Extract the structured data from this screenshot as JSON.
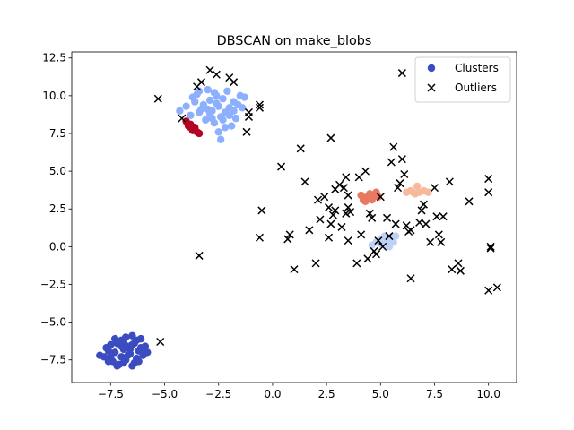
{
  "chart_data": {
    "type": "scatter",
    "title": "DBSCAN on make_blobs",
    "xlabel": "",
    "ylabel": "",
    "xlim": [
      -9.3,
      11.3
    ],
    "ylim": [
      -9.0,
      12.9
    ],
    "x_ticks": [
      -7.5,
      -5.0,
      -2.5,
      0.0,
      2.5,
      5.0,
      7.5,
      10.0
    ],
    "x_tick_labels": [
      "−7.5",
      "−5.0",
      "−2.5",
      "0.0",
      "2.5",
      "5.0",
      "7.5",
      "10.0"
    ],
    "y_ticks": [
      -7.5,
      -5.0,
      -2.5,
      0.0,
      2.5,
      5.0,
      7.5,
      10.0,
      12.5
    ],
    "y_tick_labels": [
      "−7.5",
      "−5.0",
      "−2.5",
      "0.0",
      "2.5",
      "5.0",
      "7.5",
      "10.0",
      "12.5"
    ],
    "grid": false,
    "legend": {
      "position": "top-right",
      "entries": [
        {
          "label": "Clusters",
          "marker": "circle",
          "color": "#3b4cc0"
        },
        {
          "label": "Outliers",
          "marker": "x",
          "color": "#000000"
        }
      ]
    },
    "series": [
      {
        "role": "cluster",
        "color": "#3b4cc0",
        "points": [
          [
            -8.0,
            -7.2
          ],
          [
            -7.8,
            -7.3
          ],
          [
            -7.6,
            -6.9
          ],
          [
            -7.5,
            -6.5
          ],
          [
            -7.4,
            -7.6
          ],
          [
            -7.3,
            -7.0
          ],
          [
            -7.2,
            -6.4
          ],
          [
            -7.1,
            -7.8
          ],
          [
            -7.0,
            -6.2
          ],
          [
            -7.0,
            -7.3
          ],
          [
            -6.9,
            -6.8
          ],
          [
            -6.8,
            -7.5
          ],
          [
            -6.8,
            -6.0
          ],
          [
            -6.7,
            -6.6
          ],
          [
            -6.6,
            -7.1
          ],
          [
            -6.5,
            -5.9
          ],
          [
            -6.5,
            -7.9
          ],
          [
            -6.4,
            -6.4
          ],
          [
            -6.3,
            -7.4
          ],
          [
            -6.2,
            -6.9
          ],
          [
            -6.1,
            -6.1
          ],
          [
            -6.0,
            -7.2
          ],
          [
            -5.9,
            -6.6
          ],
          [
            -5.8,
            -7.0
          ],
          [
            -7.7,
            -6.7
          ],
          [
            -7.2,
            -7.9
          ],
          [
            -6.9,
            -6.3
          ],
          [
            -6.6,
            -6.8
          ],
          [
            -6.4,
            -7.7
          ],
          [
            -6.1,
            -6.7
          ],
          [
            -7.5,
            -7.3
          ],
          [
            -7.0,
            -6.6
          ],
          [
            -6.7,
            -7.2
          ],
          [
            -6.3,
            -6.2
          ],
          [
            -6.0,
            -6.9
          ],
          [
            -7.3,
            -6.1
          ],
          [
            -6.9,
            -7.7
          ],
          [
            -6.5,
            -6.5
          ],
          [
            -6.2,
            -7.6
          ],
          [
            -7.6,
            -7.6
          ]
        ]
      },
      {
        "role": "cluster",
        "color": "#8db0fe",
        "points": [
          [
            -4.3,
            9.0
          ],
          [
            -4.0,
            9.3
          ],
          [
            -3.8,
            8.7
          ],
          [
            -3.6,
            9.6
          ],
          [
            -3.5,
            10.1
          ],
          [
            -3.4,
            8.9
          ],
          [
            -3.2,
            9.4
          ],
          [
            -3.1,
            8.4
          ],
          [
            -3.0,
            10.4
          ],
          [
            -2.9,
            9.7
          ],
          [
            -2.8,
            9.0
          ],
          [
            -2.7,
            8.2
          ],
          [
            -2.6,
            10.0
          ],
          [
            -2.5,
            9.3
          ],
          [
            -2.4,
            8.6
          ],
          [
            -2.4,
            7.1
          ],
          [
            -2.3,
            9.8
          ],
          [
            -2.2,
            8.9
          ],
          [
            -2.1,
            10.3
          ],
          [
            -2.0,
            9.2
          ],
          [
            -1.9,
            8.0
          ],
          [
            -1.8,
            9.6
          ],
          [
            -1.7,
            8.5
          ],
          [
            -1.5,
            10.0
          ],
          [
            -1.4,
            9.2
          ],
          [
            -3.7,
            9.9
          ],
          [
            -3.3,
            9.1
          ],
          [
            -2.9,
            8.8
          ],
          [
            -2.6,
            9.5
          ],
          [
            -2.3,
            8.4
          ],
          [
            -2.0,
            8.7
          ],
          [
            -1.8,
            9.0
          ],
          [
            -3.0,
            9.1
          ],
          [
            -2.7,
            10.2
          ],
          [
            -2.5,
            7.6
          ],
          [
            -2.2,
            7.9
          ],
          [
            -3.4,
            10.3
          ],
          [
            -1.6,
            9.4
          ],
          [
            -1.3,
            9.9
          ],
          [
            -2.8,
            8.5
          ]
        ]
      },
      {
        "role": "cluster",
        "color": "#bcd2f7",
        "points": [
          [
            4.6,
            0.1
          ],
          [
            4.8,
            0.3
          ],
          [
            5.0,
            0.5
          ],
          [
            5.1,
            0.2
          ],
          [
            5.2,
            0.7
          ],
          [
            5.3,
            0.4
          ],
          [
            5.4,
            0.0
          ],
          [
            5.5,
            0.6
          ],
          [
            5.6,
            0.3
          ],
          [
            5.7,
            0.7
          ],
          [
            5.3,
            0.1
          ],
          [
            5.0,
            0.2
          ]
        ]
      },
      {
        "role": "cluster",
        "color": "#f7b89c",
        "points": [
          [
            6.2,
            3.6
          ],
          [
            6.4,
            3.7
          ],
          [
            6.6,
            3.5
          ],
          [
            6.7,
            4.0
          ],
          [
            6.8,
            3.6
          ],
          [
            7.0,
            3.7
          ],
          [
            7.2,
            3.6
          ],
          [
            6.5,
            3.6
          ]
        ]
      },
      {
        "role": "cluster",
        "color": "#e8785e",
        "points": [
          [
            4.1,
            3.4
          ],
          [
            4.3,
            3.0
          ],
          [
            4.4,
            3.3
          ],
          [
            4.5,
            3.5
          ],
          [
            4.6,
            3.1
          ],
          [
            4.7,
            3.4
          ],
          [
            4.8,
            3.6
          ],
          [
            4.9,
            3.3
          ],
          [
            4.2,
            3.1
          ]
        ]
      },
      {
        "role": "cluster",
        "color": "#b40426",
        "points": [
          [
            -4.0,
            8.3
          ],
          [
            -3.9,
            8.0
          ],
          [
            -3.8,
            7.9
          ],
          [
            -3.7,
            7.7
          ],
          [
            -3.6,
            7.9
          ],
          [
            -3.5,
            7.6
          ],
          [
            -3.4,
            7.5
          ],
          [
            -3.8,
            8.1
          ]
        ]
      },
      {
        "role": "outlier",
        "color": "#000000",
        "points": [
          [
            -5.3,
            9.8
          ],
          [
            -4.2,
            8.5
          ],
          [
            -3.5,
            10.6
          ],
          [
            -3.3,
            10.9
          ],
          [
            -2.9,
            11.7
          ],
          [
            -2.6,
            11.4
          ],
          [
            -2.0,
            11.2
          ],
          [
            -1.8,
            10.9
          ],
          [
            -1.1,
            8.6
          ],
          [
            -1.1,
            8.9
          ],
          [
            -1.2,
            7.6
          ],
          [
            -0.6,
            9.2
          ],
          [
            -0.6,
            9.4
          ],
          [
            -5.2,
            -6.3
          ],
          [
            -3.4,
            -0.6
          ],
          [
            -0.6,
            0.6
          ],
          [
            -0.5,
            2.4
          ],
          [
            0.4,
            5.3
          ],
          [
            0.7,
            0.5
          ],
          [
            0.8,
            0.8
          ],
          [
            1.0,
            -1.5
          ],
          [
            1.3,
            6.5
          ],
          [
            1.5,
            4.3
          ],
          [
            1.7,
            1.1
          ],
          [
            2.0,
            -1.1
          ],
          [
            2.1,
            3.1
          ],
          [
            2.2,
            1.8
          ],
          [
            2.4,
            3.3
          ],
          [
            2.6,
            0.6
          ],
          [
            2.6,
            2.6
          ],
          [
            2.7,
            7.2
          ],
          [
            2.7,
            1.5
          ],
          [
            2.8,
            2.1
          ],
          [
            2.9,
            3.8
          ],
          [
            2.9,
            2.4
          ],
          [
            3.1,
            4.1
          ],
          [
            3.2,
            1.3
          ],
          [
            3.3,
            3.9
          ],
          [
            3.4,
            4.6
          ],
          [
            3.4,
            2.2
          ],
          [
            3.5,
            3.4
          ],
          [
            3.5,
            2.6
          ],
          [
            3.5,
            0.4
          ],
          [
            3.6,
            2.3
          ],
          [
            3.9,
            -1.1
          ],
          [
            4.0,
            4.6
          ],
          [
            4.1,
            0.8
          ],
          [
            4.3,
            5.0
          ],
          [
            4.4,
            -0.8
          ],
          [
            4.5,
            2.2
          ],
          [
            4.6,
            1.9
          ],
          [
            4.7,
            -0.3
          ],
          [
            4.8,
            -0.5
          ],
          [
            4.9,
            0.4
          ],
          [
            5.0,
            3.3
          ],
          [
            5.1,
            0.0
          ],
          [
            5.3,
            1.9
          ],
          [
            5.4,
            0.7
          ],
          [
            5.5,
            5.6
          ],
          [
            5.6,
            6.6
          ],
          [
            5.7,
            1.5
          ],
          [
            5.8,
            3.9
          ],
          [
            5.9,
            4.2
          ],
          [
            6.0,
            5.8
          ],
          [
            6.0,
            11.5
          ],
          [
            6.1,
            4.8
          ],
          [
            6.2,
            1.4
          ],
          [
            6.3,
            1.0
          ],
          [
            6.4,
            1.1
          ],
          [
            6.4,
            -2.1
          ],
          [
            6.8,
            1.6
          ],
          [
            6.9,
            2.4
          ],
          [
            7.0,
            2.8
          ],
          [
            7.1,
            1.5
          ],
          [
            7.3,
            0.3
          ],
          [
            7.5,
            3.9
          ],
          [
            7.6,
            2.0
          ],
          [
            7.7,
            0.8
          ],
          [
            7.8,
            0.3
          ],
          [
            7.9,
            2.0
          ],
          [
            8.2,
            4.3
          ],
          [
            8.3,
            -1.5
          ],
          [
            8.6,
            -1.1
          ],
          [
            8.7,
            -1.6
          ],
          [
            9.1,
            3.0
          ],
          [
            10.0,
            4.5
          ],
          [
            10.0,
            3.6
          ],
          [
            10.0,
            -2.9
          ],
          [
            10.1,
            0.0
          ],
          [
            10.1,
            -0.1
          ],
          [
            10.4,
            -2.7
          ]
        ]
      }
    ]
  }
}
